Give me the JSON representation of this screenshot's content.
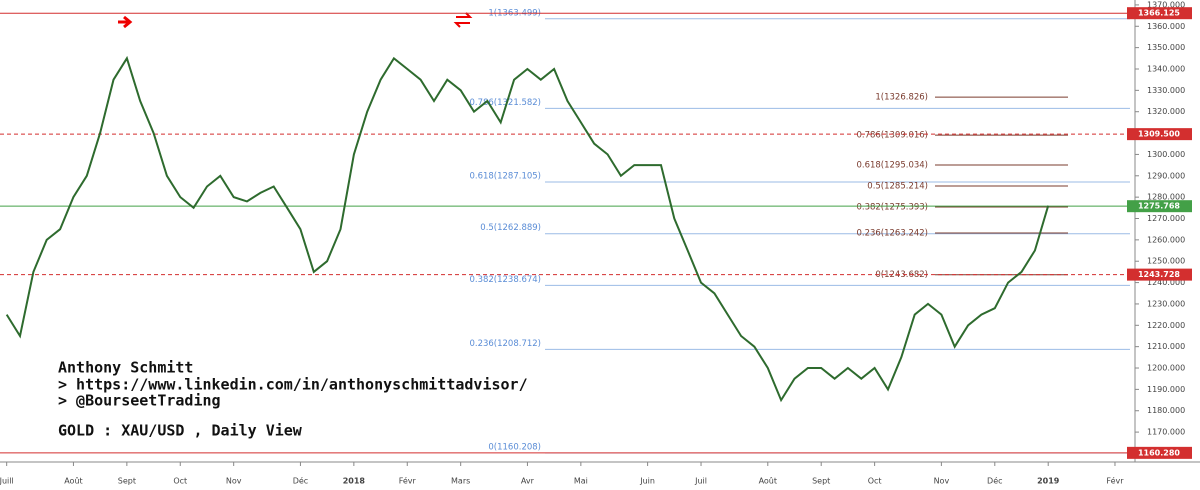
{
  "chart_data": {
    "type": "line",
    "title": "GOLD : XAU/USD , Daily View",
    "annotations": [
      "Anthony Schmitt",
      "> https://www.linkedin.com/in/anthonyschmittadvisor/",
      "> @BourseetTrading"
    ],
    "categories": [
      "Juill",
      null,
      null,
      null,
      null,
      "Août",
      null,
      null,
      null,
      "Sept",
      null,
      null,
      null,
      "Oct",
      null,
      null,
      null,
      "Nov",
      null,
      null,
      null,
      null,
      "Déc",
      null,
      null,
      null,
      "2018",
      null,
      null,
      null,
      "Févr",
      null,
      null,
      null,
      "Mars",
      null,
      null,
      null,
      null,
      "Avr",
      null,
      null,
      null,
      "Mai",
      null,
      null,
      null,
      null,
      "Juin",
      null,
      null,
      null,
      "Juil",
      null,
      null,
      null,
      null,
      "Août",
      null,
      null,
      null,
      "Sept",
      null,
      null,
      null,
      "Oct",
      null,
      null,
      null,
      null,
      "Nov",
      null,
      null,
      null,
      "Déc",
      null,
      null,
      null,
      "2019",
      null,
      null,
      null,
      null,
      "Févr",
      null
    ],
    "values": [
      1225,
      1215,
      1245,
      1260,
      1265,
      1280,
      1290,
      1310,
      1335,
      1345,
      1325,
      1310,
      1290,
      1280,
      1275,
      1285,
      1290,
      1280,
      1278,
      1282,
      1285,
      1275,
      1265,
      1245,
      1250,
      1265,
      1300,
      1320,
      1335,
      1345,
      1340,
      1335,
      1325,
      1335,
      1330,
      1320,
      1325,
      1315,
      1335,
      1340,
      1335,
      1340,
      1325,
      1315,
      1305,
      1300,
      1290,
      1295,
      1295,
      1295,
      1270,
      1255,
      1240,
      1235,
      1225,
      1215,
      1210,
      1200,
      1185,
      1195,
      1200,
      1200,
      1195,
      1200,
      1195,
      1200,
      1190,
      1205,
      1225,
      1230,
      1225,
      1210,
      1220,
      1225,
      1228,
      1240,
      1245,
      1255,
      1276,
      null,
      null,
      null,
      null,
      null,
      null
    ],
    "color": "#2e6b2e",
    "ylim": [
      1156,
      1372.3
    ],
    "yticks": [
      {
        "value": 1170,
        "label": "1170.000"
      },
      {
        "value": 1180,
        "label": "1180.000"
      },
      {
        "value": 1190,
        "label": "1190.000"
      },
      {
        "value": 1200,
        "label": "1200.000"
      },
      {
        "value": 1210,
        "label": "1210.000"
      },
      {
        "value": 1220,
        "label": "1220.000"
      },
      {
        "value": 1230,
        "label": "1230.000"
      },
      {
        "value": 1240,
        "label": "1240.000"
      },
      {
        "value": 1250,
        "label": "1250.000"
      },
      {
        "value": 1260,
        "label": "1260.000"
      },
      {
        "value": 1270,
        "label": "1270.000"
      },
      {
        "value": 1280,
        "label": "1280.000"
      },
      {
        "value": 1290,
        "label": "1290.000"
      },
      {
        "value": 1300,
        "label": "1300.000"
      },
      {
        "value": 1310,
        "label": "1310.000"
      },
      {
        "value": 1320,
        "label": "1320.000"
      },
      {
        "value": 1330,
        "label": "1330.000"
      },
      {
        "value": 1340,
        "label": "1340.000"
      },
      {
        "value": 1350,
        "label": "1350.000"
      },
      {
        "value": 1360,
        "label": "1360.000"
      },
      {
        "value": 1370,
        "label": "1370.000"
      }
    ],
    "fib_left": [
      {
        "value": 1363.499,
        "label": "1(1363.499)"
      },
      {
        "value": 1321.582,
        "label": "0.786(1321.582)"
      },
      {
        "value": 1287.105,
        "label": "0.618(1287.105)"
      },
      {
        "value": 1262.889,
        "label": "0.5(1262.889)"
      },
      {
        "value": 1238.674,
        "label": "0.382(1238.674)"
      },
      {
        "value": 1208.712,
        "label": "0.236(1208.712)"
      },
      {
        "value": 1160.208,
        "label": "0(1160.208)"
      }
    ],
    "fib_right": [
      {
        "value": 1326.826,
        "label": "1(1326.826)"
      },
      {
        "value": 1309.016,
        "label": "0.786(1309.016)"
      },
      {
        "value": 1295.034,
        "label": "0.618(1295.034)"
      },
      {
        "value": 1285.214,
        "label": "0.5(1285.214)"
      },
      {
        "value": 1275.393,
        "label": "0.382(1275.393)"
      },
      {
        "value": 1263.242,
        "label": "0.236(1263.242)"
      },
      {
        "value": 1243.682,
        "label": "0(1243.682)"
      }
    ],
    "price_tags": [
      {
        "value": 1366.125,
        "label": "1366.125",
        "color": "#d32f2f"
      },
      {
        "value": 1309.5,
        "label": "1309.500",
        "color": "#d32f2f"
      },
      {
        "value": 1275.768,
        "label": "1275.768",
        "color": "#43a047"
      },
      {
        "value": 1243.728,
        "label": "1243.728",
        "color": "#d32f2f"
      },
      {
        "value": 1160.28,
        "label": "1160.280",
        "color": "#d32f2f"
      }
    ]
  }
}
